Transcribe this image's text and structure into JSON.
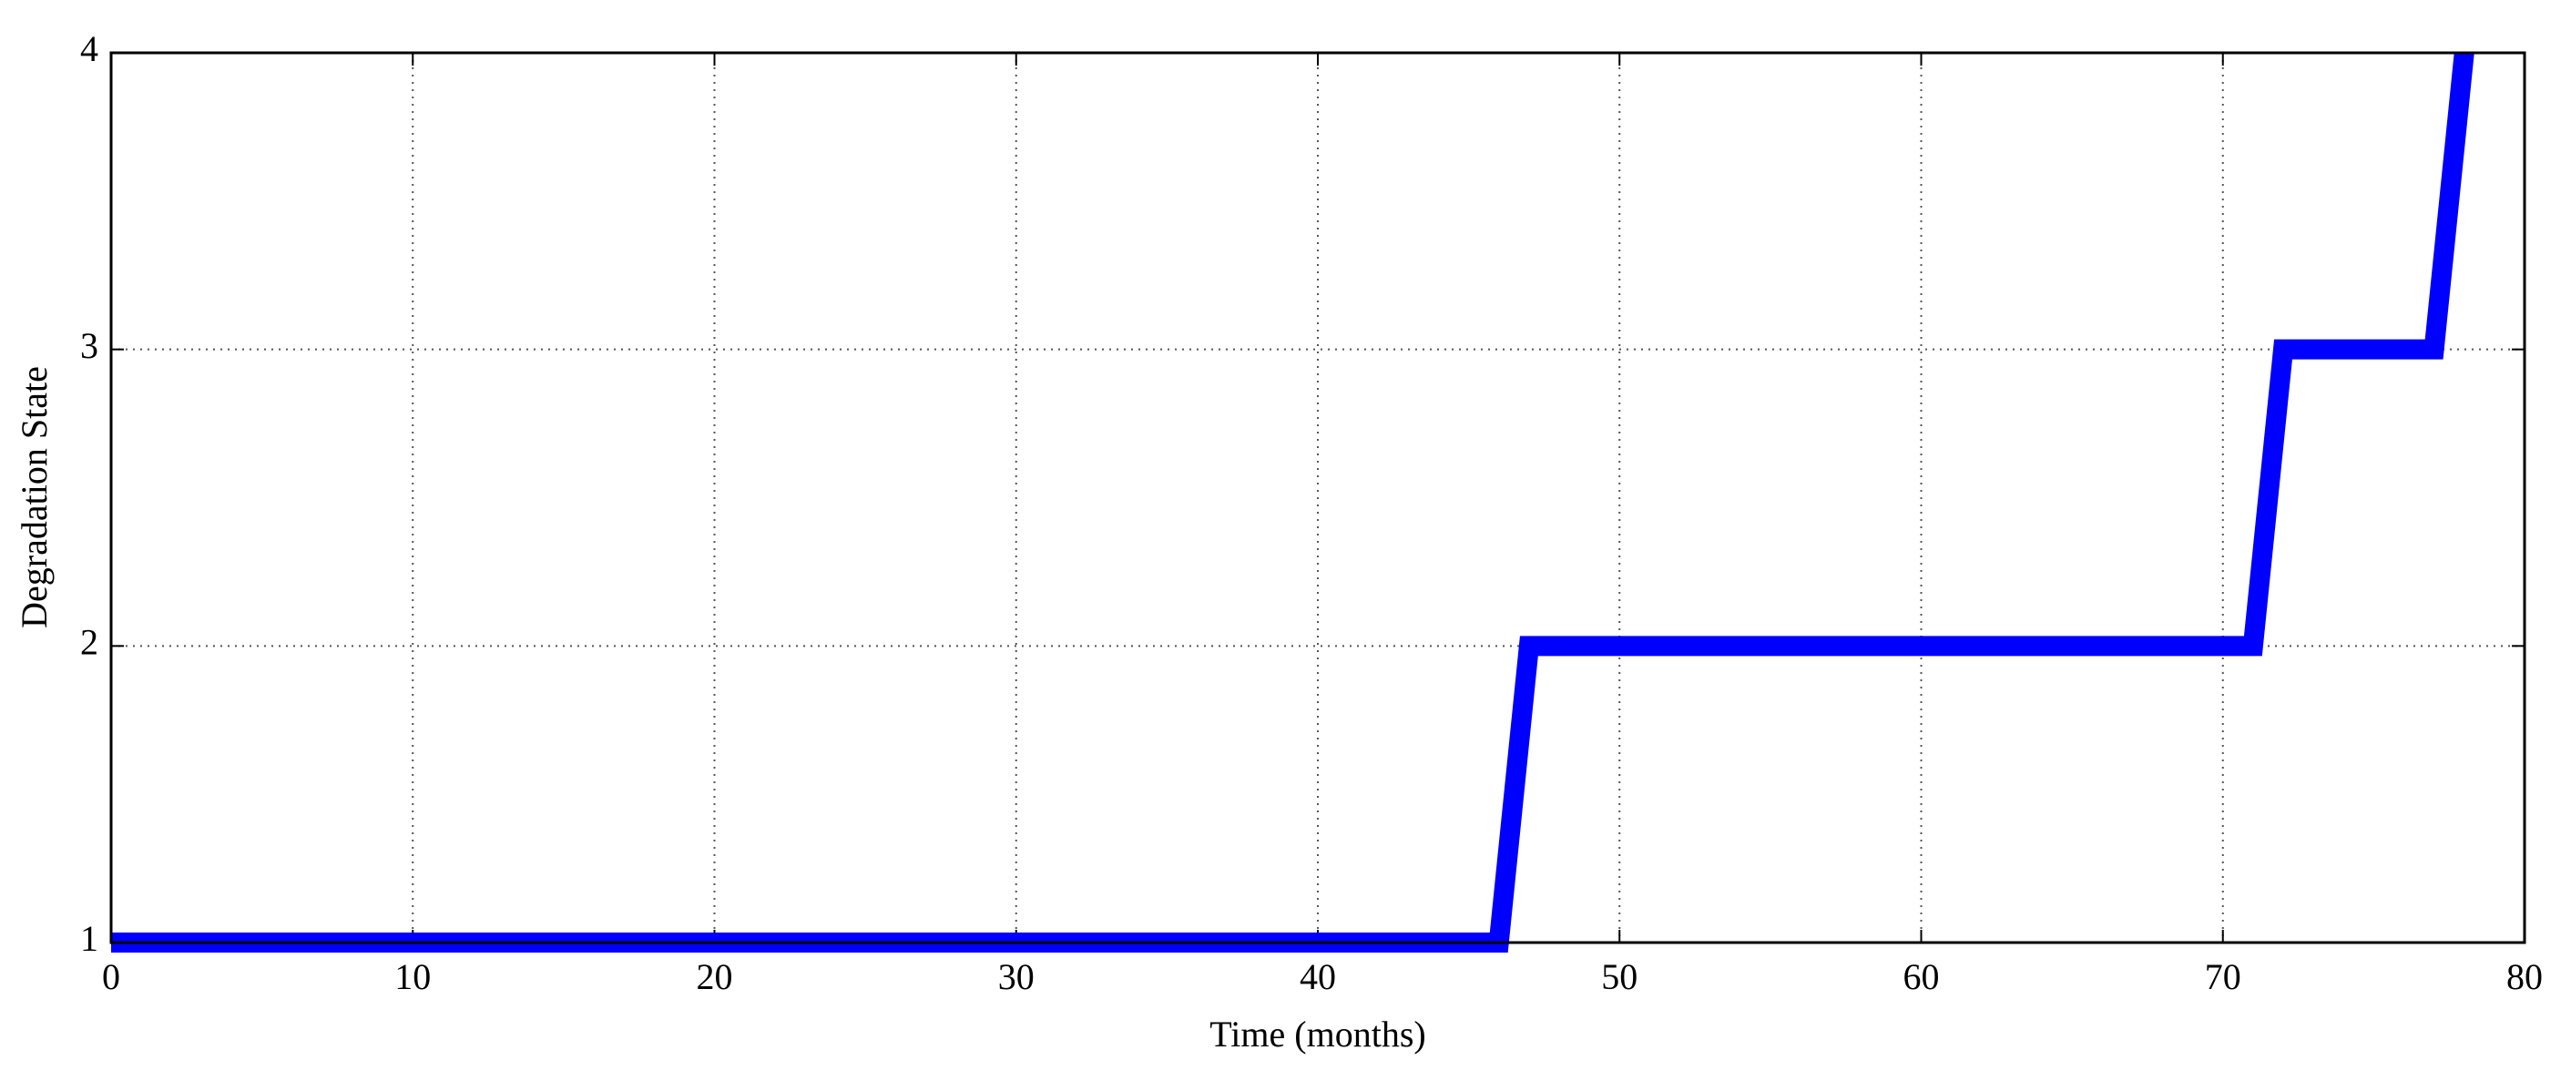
{
  "chart_data": {
    "type": "line",
    "x_label": "Time (months)",
    "y_label": "Degradation State",
    "x": [
      0,
      46,
      47,
      71,
      72,
      77,
      78
    ],
    "values": [
      1,
      1,
      2,
      2,
      3,
      3,
      4
    ],
    "color": "#0000ff",
    "xlim": [
      0,
      80
    ],
    "xticks": [
      0,
      10,
      20,
      30,
      40,
      50,
      60,
      70,
      80
    ],
    "ylim": [
      1,
      4
    ],
    "yticks": [
      1,
      2,
      3,
      4
    ],
    "grid": true
  }
}
